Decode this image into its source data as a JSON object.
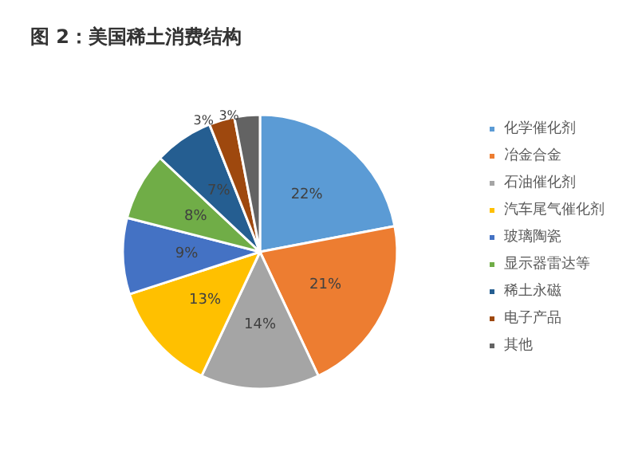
{
  "chart_data": {
    "type": "pie",
    "title": "图 2：美国稀土消费结构",
    "categories": [
      "化学催化剂",
      "冶金合金",
      "石油催化剂",
      "汽车尾气催化剂",
      "玻璃陶瓷",
      "显示器雷达等",
      "稀土永磁",
      "电子产品",
      "其他"
    ],
    "values": [
      22,
      21,
      14,
      13,
      9,
      8,
      7,
      3,
      3
    ],
    "colors": [
      "#5b9bd5",
      "#ed7d31",
      "#a5a5a5",
      "#ffc000",
      "#4472c4",
      "#70ad47",
      "#255e91",
      "#9e480e",
      "#636363"
    ],
    "value_labels": [
      "22%",
      "21%",
      "14%",
      "13%",
      "9%",
      "8%",
      "7%",
      "3%",
      "3%"
    ],
    "legend": "right"
  }
}
